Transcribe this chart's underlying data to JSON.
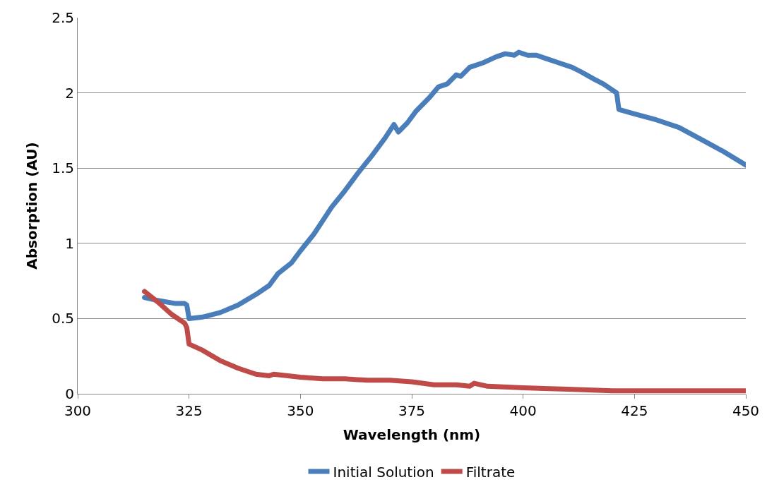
{
  "chart_data": {
    "type": "line",
    "xlabel": "Wavelength (nm)",
    "ylabel": "Absorption (AU)",
    "xlim": [
      300,
      450
    ],
    "xticks": [
      300,
      325,
      350,
      375,
      400,
      425,
      450
    ],
    "ylim": [
      0,
      2.5
    ],
    "yticks": [
      0,
      0.5,
      1,
      1.5,
      2,
      2.5
    ],
    "grid": "y",
    "legend": "bottom",
    "marker": "none",
    "line_style": "solid",
    "series": [
      {
        "name": "Initial Solution",
        "color": "#4a7ebb",
        "x": [
          315,
          318,
          322,
          324,
          324.5,
          325,
          328,
          332,
          336,
          340,
          343,
          345,
          348,
          350,
          353,
          355,
          357,
          360,
          363,
          366,
          369,
          371,
          372,
          374,
          376,
          379,
          381,
          383,
          385,
          386,
          388,
          391,
          394,
          396,
          398,
          399,
          401,
          403,
          405,
          408,
          411,
          413,
          416,
          418,
          420,
          421,
          421.5,
          425,
          430,
          435,
          440,
          445,
          450
        ],
        "values": [
          0.64,
          0.62,
          0.6,
          0.6,
          0.59,
          0.5,
          0.51,
          0.54,
          0.59,
          0.66,
          0.72,
          0.8,
          0.87,
          0.95,
          1.06,
          1.15,
          1.24,
          1.35,
          1.47,
          1.58,
          1.7,
          1.79,
          1.74,
          1.8,
          1.88,
          1.97,
          2.04,
          2.06,
          2.12,
          2.11,
          2.17,
          2.2,
          2.24,
          2.26,
          2.25,
          2.27,
          2.25,
          2.25,
          2.23,
          2.2,
          2.17,
          2.14,
          2.09,
          2.06,
          2.02,
          2.0,
          1.89,
          1.86,
          1.82,
          1.77,
          1.69,
          1.61,
          1.52
        ]
      },
      {
        "name": "Filtrate",
        "color": "#be4b48",
        "x": [
          315,
          318,
          321,
          324,
          324.5,
          325,
          328,
          332,
          336,
          340,
          343,
          344,
          350,
          355,
          360,
          365,
          370,
          375,
          380,
          385,
          388,
          389,
          392,
          400,
          410,
          420,
          430,
          440,
          450
        ],
        "values": [
          0.68,
          0.61,
          0.53,
          0.47,
          0.44,
          0.33,
          0.29,
          0.22,
          0.17,
          0.13,
          0.12,
          0.13,
          0.11,
          0.1,
          0.1,
          0.09,
          0.09,
          0.08,
          0.06,
          0.06,
          0.05,
          0.07,
          0.05,
          0.04,
          0.03,
          0.02,
          0.02,
          0.02,
          0.02
        ]
      }
    ]
  }
}
